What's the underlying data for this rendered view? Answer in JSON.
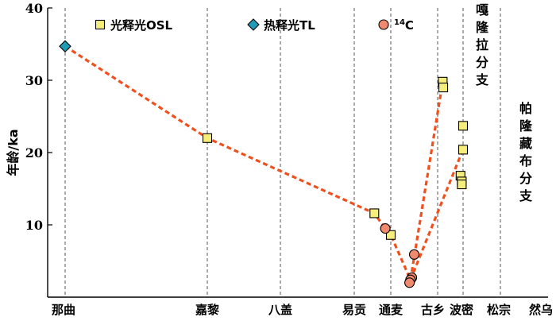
{
  "chart_data": {
    "type": "line",
    "ylabel": "年龄/ka",
    "ylim": [
      0,
      40
    ],
    "yticks": [
      10,
      20,
      30,
      40
    ],
    "categories": [
      "那曲",
      "嘉黎",
      "八盖",
      "易贡",
      "通麦",
      "古乡",
      "波密",
      "松宗",
      "然乌"
    ],
    "legend": [
      {
        "key": "OSL",
        "label": "光释光OSL",
        "marker": "square",
        "color": "#f6ee7b"
      },
      {
        "key": "TL",
        "label": "热释光TL",
        "marker": "diamond",
        "color": "#1f9bb5"
      },
      {
        "key": "C14",
        "label_sup": "14",
        "label_main": "C",
        "marker": "circle",
        "color": "#f08a6e"
      }
    ],
    "series": [
      {
        "key": "OSL",
        "points": [
          {
            "x": 1.0,
            "y": 22.0
          },
          {
            "x": 3.55,
            "y": 11.6
          },
          {
            "x": 4.0,
            "y": 8.6
          },
          {
            "x": 5.2,
            "y": 29.8
          },
          {
            "x": 5.22,
            "y": 29.0
          },
          {
            "x": 5.9,
            "y": 16.8
          },
          {
            "x": 5.95,
            "y": 16.0
          },
          {
            "x": 5.95,
            "y": 15.6
          },
          {
            "x": 6.0,
            "y": 20.4
          },
          {
            "x": 6.0,
            "y": 23.7
          }
        ]
      },
      {
        "key": "TL",
        "points": [
          {
            "x": 0.0,
            "y": 34.7
          }
        ]
      },
      {
        "key": "C14",
        "points": [
          {
            "x": 3.85,
            "y": 9.5
          },
          {
            "x": 4.5,
            "y": 5.9
          },
          {
            "x": 4.45,
            "y": 2.7
          },
          {
            "x": 4.42,
            "y": 2.4
          },
          {
            "x": 4.4,
            "y": 2.0
          }
        ]
      }
    ],
    "trend_lines": [
      {
        "points": [
          {
            "x": 0.0,
            "y": 34.7
          },
          {
            "x": 1.0,
            "y": 22.0
          },
          {
            "x": 3.55,
            "y": 11.6
          },
          {
            "x": 3.85,
            "y": 9.5
          },
          {
            "x": 4.0,
            "y": 8.6
          },
          {
            "x": 4.42,
            "y": 2.4
          },
          {
            "x": 5.2,
            "y": 29.8
          }
        ]
      },
      {
        "points": [
          {
            "x": 4.42,
            "y": 2.4
          },
          {
            "x": 5.95,
            "y": 20.0
          }
        ]
      }
    ],
    "branch_labels": [
      {
        "text": "嘎隆拉分支"
      },
      {
        "text": "帕隆藏布分支"
      }
    ]
  }
}
